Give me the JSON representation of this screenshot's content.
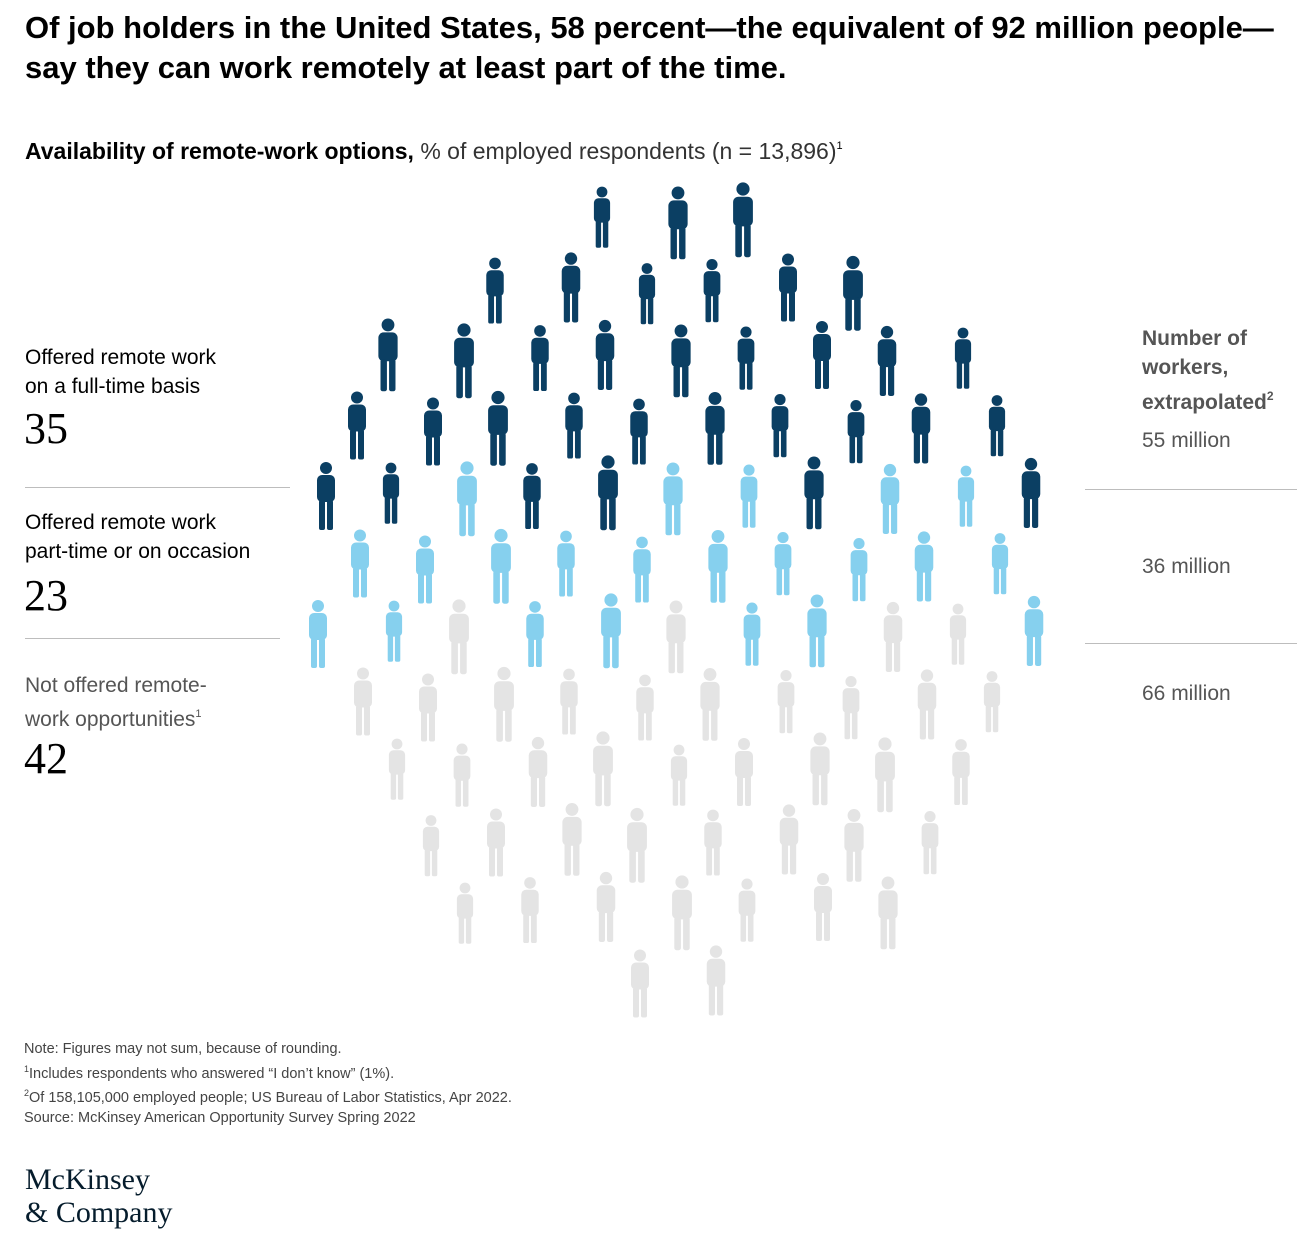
{
  "headline": "Of job holders in the United States, 58 percent—the equivalent of 92 million people—say they can work remotely at least part of the time.",
  "subtitle": {
    "bold": "Availability of remote-work options,",
    "normal": " % of employed respondents (n = 13,896)",
    "footnote_mark": "1"
  },
  "chart_data": {
    "type": "pictogram",
    "unit": "%",
    "categories": [
      "Offered remote work on a full-time basis",
      "Offered remote work part-time or on occasion",
      "Not offered remote-work opportunities"
    ],
    "values": [
      35,
      23,
      42
    ],
    "workers_extrapolated": [
      "55 million",
      "36 million",
      "66 million"
    ],
    "colors": [
      "#0b3f63",
      "#86d0ee",
      "#e4e4e4"
    ]
  },
  "labels": {
    "full_time": {
      "line1": "Offered remote work",
      "line2": "on a full-time basis",
      "value": "35"
    },
    "part_time": {
      "line1": "Offered remote work",
      "line2": "part-time or on occasion",
      "value": "23"
    },
    "not_offered": {
      "line1": "Not offered remote-",
      "line2": "work opportunities",
      "footnote_mark": "1",
      "value": "42"
    }
  },
  "workers": {
    "title_line1": "Number of",
    "title_line2": "workers,",
    "title_line3": "extrapolated",
    "footnote_mark": "2",
    "full_time": "55 million",
    "part_time": "36 million",
    "not_offered": "66 million"
  },
  "notes": {
    "note": "Note: Figures may not sum, because of rounding.",
    "fn1_mark": "1",
    "fn1": "Includes respondents who answered “I don’t know” (1%).",
    "fn2_mark": "2",
    "fn2": "Of 158,105,000 employed people; US Bureau of Labor Statistics, Apr 2022.",
    "source": "Source: McKinsey American Opportunity Survey Spring 2022"
  },
  "logo": {
    "line1": "McKinsey",
    "line2": "& Company"
  }
}
